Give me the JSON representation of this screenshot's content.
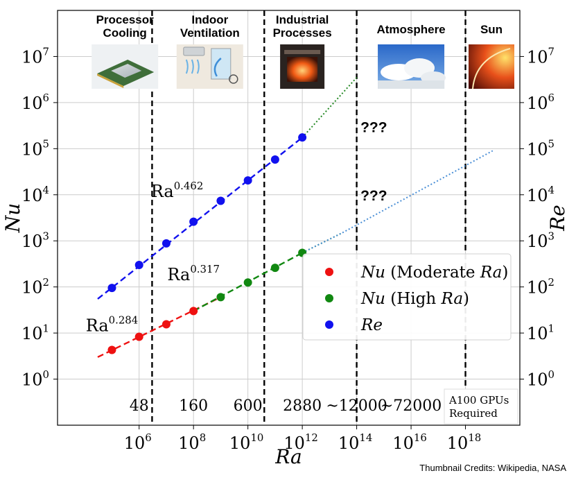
{
  "chart_data": {
    "type": "scatter",
    "x_scale": "log",
    "y_scale": "log",
    "xlabel": "Ra",
    "ylabel_left": "Nu",
    "ylabel_right": "Re",
    "xlim": [
      1000.0,
      1e+20
    ],
    "ylim": [
      0.1,
      100000000.0
    ],
    "x_ticks": [
      {
        "value": 1000000.0,
        "base": "10",
        "exp": "6"
      },
      {
        "value": 100000000.0,
        "base": "10",
        "exp": "8"
      },
      {
        "value": 10000000000.0,
        "base": "10",
        "exp": "10"
      },
      {
        "value": 1000000000000.0,
        "base": "10",
        "exp": "12"
      },
      {
        "value": 100000000000000.0,
        "base": "10",
        "exp": "14"
      },
      {
        "value": 1e+16,
        "base": "10",
        "exp": "16"
      },
      {
        "value": 1e+18,
        "base": "10",
        "exp": "18"
      }
    ],
    "y_ticks": [
      {
        "value": 1,
        "base": "10",
        "exp": "0"
      },
      {
        "value": 10,
        "base": "10",
        "exp": "1"
      },
      {
        "value": 100,
        "base": "10",
        "exp": "2"
      },
      {
        "value": 1000,
        "base": "10",
        "exp": "3"
      },
      {
        "value": 10000,
        "base": "10",
        "exp": "4"
      },
      {
        "value": 100000,
        "base": "10",
        "exp": "5"
      },
      {
        "value": 1000000,
        "base": "10",
        "exp": "6"
      },
      {
        "value": 10000000,
        "base": "10",
        "exp": "7"
      }
    ],
    "grid": true,
    "series": [
      {
        "name": "Nu (Moderate Ra)",
        "color": "#ee1111",
        "x": [
          100000.0,
          1000000.0,
          10000000.0,
          100000000.0
        ],
        "y": [
          4.3,
          8.3,
          15.5,
          30
        ]
      },
      {
        "name": "Nu (High Ra)",
        "color": "#118811",
        "x": [
          1000000000.0,
          10000000000.0,
          100000000000.0,
          1000000000000.0
        ],
        "y": [
          60,
          125,
          260,
          550
        ]
      },
      {
        "name": "Re",
        "color": "#1111ee",
        "x": [
          100000.0,
          1000000.0,
          10000000.0,
          100000000.0,
          1000000000.0,
          10000000000.0,
          100000000000.0,
          1000000000000.0
        ],
        "y": [
          95,
          300,
          880,
          2600,
          7400,
          20500,
          58000,
          175000
        ]
      }
    ],
    "fits": [
      {
        "color": "#ee1111",
        "style": "dashed",
        "x": [
          30000.0,
          1000000000.0
        ],
        "y": [
          3.0,
          60
        ],
        "label_base": "Ra",
        "label_exp": "0.284",
        "label_at": [
          100000.0,
          11
        ]
      },
      {
        "color": "#118811",
        "style": "dashed",
        "x": [
          100000000.0,
          1000000000000.0
        ],
        "y": [
          30,
          550
        ],
        "label_base": "Ra",
        "label_exp": "0.317",
        "label_at": [
          100000000.0,
          140
        ]
      },
      {
        "color": "#118811",
        "style": "dotted",
        "x": [
          1000000000000.0,
          30000000000000.0
        ],
        "y": [
          550,
          1500
        ],
        "label_base": "",
        "label_exp": "",
        "label_at": null
      },
      {
        "color": "#1111ee",
        "style": "dashed",
        "x": [
          30000.0,
          1000000000000.0
        ],
        "y": [
          55,
          175000
        ],
        "label_base": "Ra",
        "label_exp": "0.462",
        "label_at": [
          25000000.0,
          9000
        ]
      },
      {
        "color": "#4a8fd6",
        "style": "dotted",
        "x": [
          1000000000000.0,
          30000000000000.0
        ],
        "y": [
          550,
          1500
        ],
        "label_base": "",
        "label_exp": "",
        "label_at": null
      },
      {
        "color": "#4a8fd6",
        "style": "dotted",
        "x": [
          30000000000000.0,
          1e+19
        ],
        "y": [
          1500,
          90000
        ],
        "label_base": "",
        "label_exp": "",
        "label_at": null
      },
      {
        "color": "#228822",
        "style": "dotted",
        "x": [
          1000000000000.0,
          100000000000000.0
        ],
        "y": [
          175000,
          3500000
        ],
        "label_base": "",
        "label_exp": "",
        "label_at": null
      }
    ],
    "regime_separators": [
      3000000.0,
      40000000000.0,
      100000000000000.0,
      1e+18
    ],
    "regions": [
      {
        "name": "Processor\nCooling",
        "x_center": 300000.0,
        "gpus": "48",
        "thumb": "cpu"
      },
      {
        "name": "Indoor\nVentilation",
        "x_center": 400000000.0,
        "gpus": "160",
        "thumb": "ventilation"
      },
      {
        "name": "Industrial\nProcesses",
        "x_center": 1000000000000.0,
        "gpus": "",
        "thumb": "furnace"
      },
      {
        "name": "Atmosphere",
        "x_center": 1e+16,
        "gpus": "",
        "thumb": "clouds"
      },
      {
        "name": "Sun",
        "x_center": 3e+19,
        "gpus": "",
        "thumb": "sun"
      }
    ],
    "gpu_counts": [
      {
        "text": "48",
        "x": 1000000.0
      },
      {
        "text": "160",
        "x": 100000000.0
      },
      {
        "text": "600",
        "x": 10000000000.0
      },
      {
        "text": "2880",
        "x": 1000000000000.0
      },
      {
        "text": "~12000",
        "x": 100000000000000.0
      },
      {
        "text": "~72000",
        "x": 1e+16
      }
    ],
    "gpu_note": "A100 GPUs\nRequired",
    "unknown_marks": [
      {
        "text": "???",
        "x": 300000000000000.0,
        "y": 300000
      },
      {
        "text": "???",
        "x": 300000000000000.0,
        "y": 10000
      }
    ],
    "legend": {
      "placement": "right-middle",
      "entries": [
        {
          "color": "#ee1111",
          "name_main": "Nu",
          "name_paren": "(Moderate ",
          "name_var": "Ra",
          "name_close": ")"
        },
        {
          "color": "#118811",
          "name_main": "Nu",
          "name_paren": "(High ",
          "name_var": "Ra",
          "name_close": ")"
        },
        {
          "color": "#1111ee",
          "name_main": "Re",
          "name_paren": "",
          "name_var": "",
          "name_close": ""
        }
      ]
    }
  },
  "credits": "Thumbnail Credits: Wikipedia, NASA"
}
